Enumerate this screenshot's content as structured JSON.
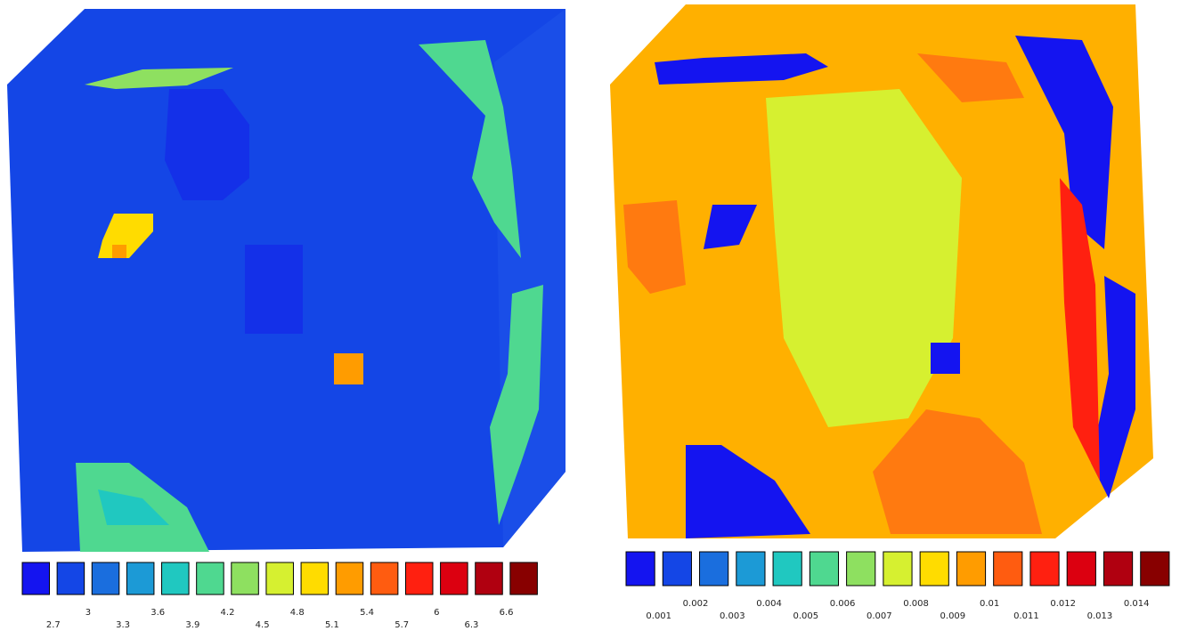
{
  "panels": [
    {
      "legend": {
        "colors": [
          "#1414f0",
          "#1446e6",
          "#1a6ede",
          "#1c9ad6",
          "#20c8c0",
          "#4fd890",
          "#8ee060",
          "#d6f030",
          "#ffdc00",
          "#ff9c00",
          "#ff5c10",
          "#ff2010",
          "#dc0010",
          "#b00010",
          "#880000"
        ],
        "labels": [
          "2.7",
          "3",
          "3.3",
          "3.6",
          "3.9",
          "4.2",
          "4.5",
          "4.8",
          "5.1",
          "5.4",
          "5.7",
          "6",
          "6.3",
          "6.6"
        ]
      }
    },
    {
      "legend": {
        "colors": [
          "#1414f0",
          "#1446e6",
          "#1a6ede",
          "#1c9ad6",
          "#20c8c0",
          "#4fd890",
          "#8ee060",
          "#d6f030",
          "#ffdc00",
          "#ff9c00",
          "#ff5c10",
          "#ff2010",
          "#dc0010",
          "#b00010",
          "#880000"
        ],
        "labels": [
          "0.001",
          "0.002",
          "0.003",
          "0.004",
          "0.005",
          "0.006",
          "0.007",
          "0.008",
          "0.009",
          "0.01",
          "0.011",
          "0.012",
          "0.013",
          "0.014"
        ]
      }
    }
  ]
}
